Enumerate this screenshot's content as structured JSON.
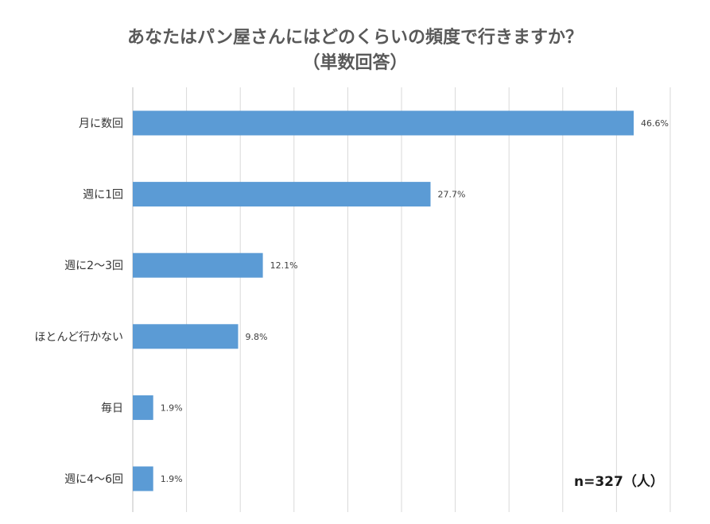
{
  "chart_data": {
    "type": "bar",
    "orientation": "horizontal",
    "title": [
      "あなたはパン屋さんにはどのくらいの頻度で行きますか？",
      "（単数回答）"
    ],
    "categories": [
      "月に数回",
      "週に1回",
      "週に2～3回",
      "ほとんど行かない",
      "毎日",
      "週に4～6回"
    ],
    "values": [
      46.6,
      27.7,
      12.1,
      9.8,
      1.9,
      1.9
    ],
    "value_labels": [
      "46.6%",
      "27.7%",
      "12.1%",
      "9.8%",
      "1.9%",
      "1.9%"
    ],
    "xlim": [
      0,
      50
    ],
    "grid": true,
    "color": "#5B9BD5",
    "annotation": "n=327（人）"
  }
}
